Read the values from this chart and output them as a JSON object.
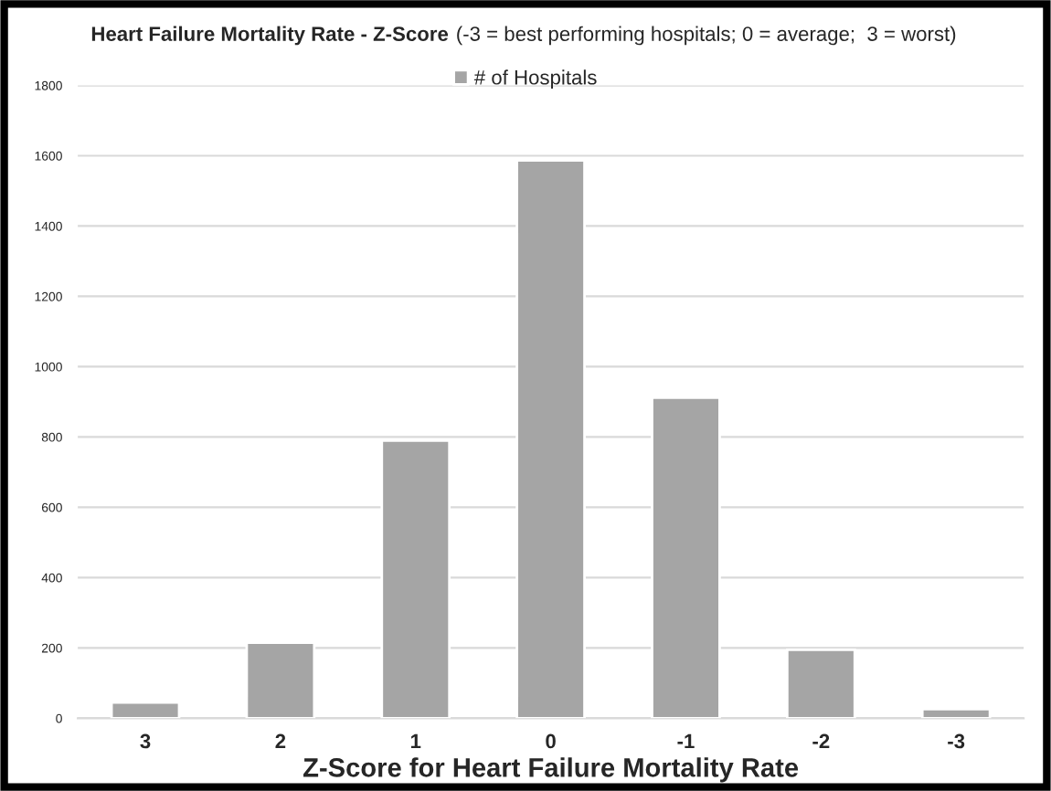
{
  "chart_data": {
    "type": "bar",
    "title": "Heart Failure Mortality Rate - Z-Score",
    "subtitle": "(-3 = best performing hospitals; 0 = average;  3 = worst)",
    "xlabel": "Z-Score for Heart Failure Mortality Rate",
    "categories": [
      "3",
      "2",
      "1",
      "0",
      "-1",
      "-2",
      "-3"
    ],
    "series": [
      {
        "name": "# of Hospitals",
        "color": "#a5a5a5",
        "values": [
          45,
          215,
          790,
          1587,
          912,
          195,
          26
        ]
      }
    ],
    "ylim": [
      0,
      1800
    ],
    "yticks": [
      0,
      200,
      400,
      600,
      800,
      1000,
      1200,
      1400,
      1600,
      1800
    ],
    "grid": "y",
    "legend": "top"
  }
}
